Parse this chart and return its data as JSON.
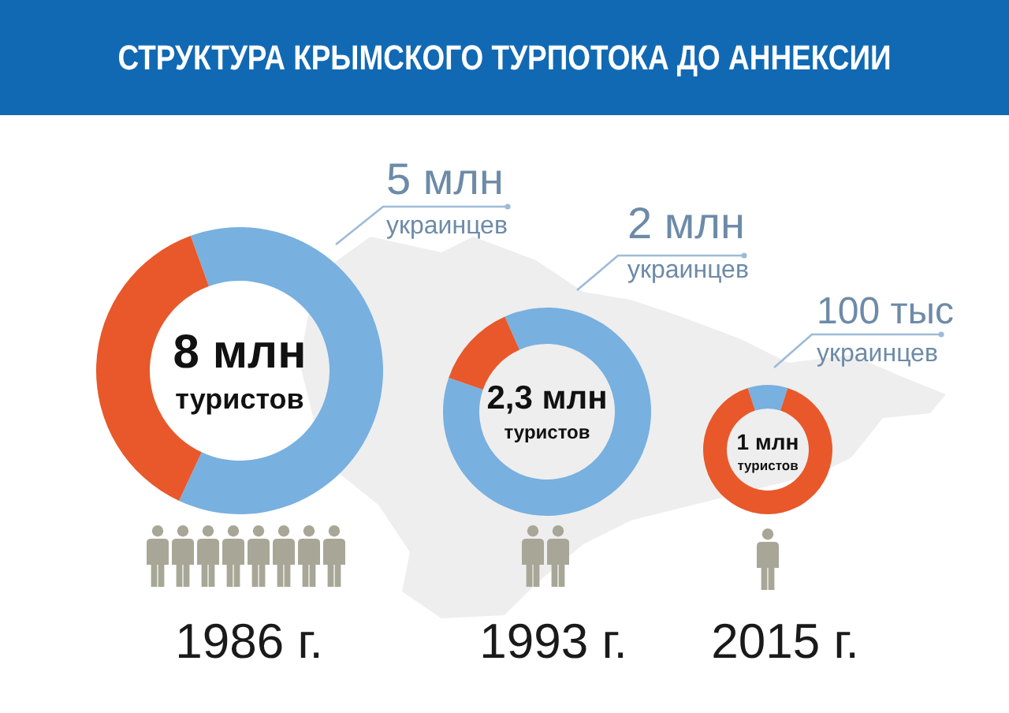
{
  "chart_data": [
    {
      "type": "donut",
      "title": "СТРУКТУРА КРЫМСКОГО ТУРПОТОКА ДО АННЕКСИИ",
      "categories": [
        "украинцев",
        null
      ],
      "values": [
        5,
        3
      ],
      "colors": [
        "#78b0e0",
        "#e8582a"
      ],
      "value_labels": [
        "5 млн",
        null
      ],
      "annotations": [
        "8 млн",
        "туристов",
        "1986 г."
      ]
    },
    {
      "type": "donut",
      "categories": [
        "украинцев",
        null
      ],
      "values": [
        2,
        0.3
      ],
      "colors": [
        "#78b0e0",
        "#e8582a"
      ],
      "value_labels": [
        "2 млн",
        null
      ],
      "annotations": [
        "2,3 млн",
        "туристов",
        "1993 г."
      ]
    },
    {
      "type": "donut",
      "categories": [
        "украинцев",
        null
      ],
      "values": [
        100,
        900
      ],
      "colors": [
        "#78b0e0",
        "#e8582a"
      ],
      "value_labels": [
        "100 тыс",
        null
      ],
      "annotations": [
        "1 млн",
        "туристов",
        "2015 г."
      ]
    }
  ]
}
